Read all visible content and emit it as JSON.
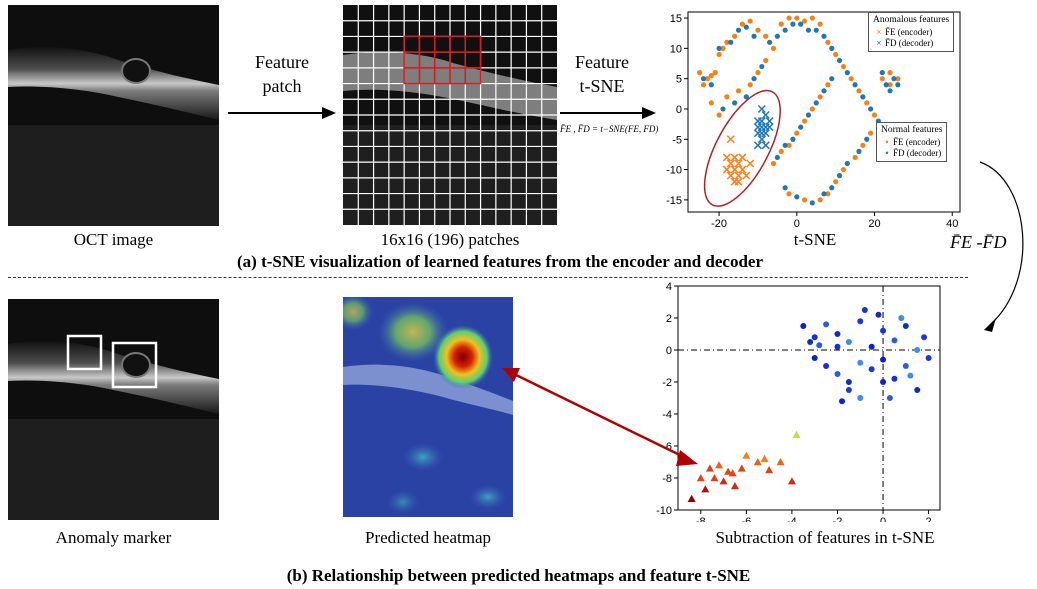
{
  "top": {
    "oct_caption": "OCT image",
    "arrow1_label_line1": "Feature",
    "arrow1_label_line2": "patch",
    "patches_caption": "16x16 (196) patches",
    "arrow2_label_line1": "Feature",
    "arrow2_label_line2": "t-SNE",
    "formula": "F̄E , F̄D = t−SNE(FE, FD)",
    "tsne_caption": "t-SNE",
    "section_title": "(a) t-SNE visualization of learned features from the encoder and decoder",
    "side_label": "F̄E -F̄D"
  },
  "bottom": {
    "marker_caption": "Anomaly marker",
    "heatmap_caption": "Predicted  heatmap",
    "sub_caption": "Subtraction of features in t-SNE",
    "section_title": "(b) Relationship between predicted heatmaps and feature t-SNE"
  },
  "legend_anomalous": {
    "title": "Anomalous  features",
    "encoder": "F̄E (encoder)",
    "decoder": "F̄D (decoder)"
  },
  "legend_normal": {
    "title": "Normal features",
    "encoder": "F̄E (encoder)",
    "decoder": "F̄D (decoder)"
  },
  "colors": {
    "encoder": "#ff7f0e",
    "decoder": "#1f77b4",
    "ellipse": "#b22222",
    "arrow": "#b00000"
  },
  "chart_data": [
    {
      "type": "scatter",
      "title": "",
      "xlabel": "",
      "ylabel": "",
      "xlim": [
        -28,
        42
      ],
      "ylim": [
        -17,
        16
      ],
      "xticks": [
        -20,
        0,
        20,
        40
      ],
      "yticks": [
        -15,
        -10,
        -5,
        0,
        5,
        10,
        15
      ],
      "grid": false,
      "series": [
        {
          "name": "Normal encoder",
          "marker": "dot",
          "points": [
            [
              -25,
              6
            ],
            [
              -24,
              4
            ],
            [
              -23,
              5
            ],
            [
              -22,
              5.5
            ],
            [
              -21,
              6
            ],
            [
              -20,
              9
            ],
            [
              -19,
              10
            ],
            [
              -18,
              11
            ],
            [
              -16,
              12
            ],
            [
              -14,
              14
            ],
            [
              -12,
              14.5
            ],
            [
              -10,
              13
            ],
            [
              -8,
              12
            ],
            [
              -6,
              10
            ],
            [
              -4,
              14
            ],
            [
              -2,
              15
            ],
            [
              0,
              15
            ],
            [
              2,
              14.5
            ],
            [
              4,
              15
            ],
            [
              6,
              14
            ],
            [
              8,
              11
            ],
            [
              10,
              9
            ],
            [
              12,
              7
            ],
            [
              14,
              5
            ],
            [
              16,
              3
            ],
            [
              18,
              1
            ],
            [
              20,
              -1
            ],
            [
              19,
              -4
            ],
            [
              17,
              -6
            ],
            [
              15,
              -8
            ],
            [
              12,
              -10
            ],
            [
              10,
              -12
            ],
            [
              8,
              -14
            ],
            [
              6,
              -15
            ],
            [
              2,
              -15
            ],
            [
              -2,
              -14
            ],
            [
              -6,
              -9
            ],
            [
              -4,
              -7
            ],
            [
              -2,
              -6
            ],
            [
              0,
              -4
            ],
            [
              2,
              -2
            ],
            [
              4,
              0
            ],
            [
              6,
              2
            ],
            [
              8,
              4
            ],
            [
              -20,
              -1
            ],
            [
              -22,
              1
            ],
            [
              -18,
              2
            ],
            [
              -15,
              3
            ],
            [
              -12,
              4
            ],
            [
              -10,
              6
            ],
            [
              -8,
              8
            ],
            [
              22,
              5
            ],
            [
              24,
              4
            ],
            [
              26,
              5
            ],
            [
              24,
              6
            ]
          ]
        },
        {
          "name": "Normal decoder",
          "marker": "dot",
          "points": [
            [
              -24,
              5
            ],
            [
              -22,
              4
            ],
            [
              -20,
              10
            ],
            [
              -17,
              11
            ],
            [
              -15,
              13
            ],
            [
              -13,
              13.5
            ],
            [
              -11,
              12
            ],
            [
              -7,
              11
            ],
            [
              -5,
              12
            ],
            [
              -3,
              13
            ],
            [
              -1,
              14
            ],
            [
              1,
              14
            ],
            [
              3,
              13
            ],
            [
              5,
              13
            ],
            [
              7,
              12
            ],
            [
              9,
              10
            ],
            [
              11,
              8
            ],
            [
              13,
              6
            ],
            [
              15,
              4
            ],
            [
              17,
              2
            ],
            [
              19,
              0
            ],
            [
              21,
              -2
            ],
            [
              18,
              -5
            ],
            [
              16,
              -7
            ],
            [
              13,
              -9
            ],
            [
              11,
              -11
            ],
            [
              9,
              -13
            ],
            [
              7,
              -14
            ],
            [
              4,
              -15.5
            ],
            [
              0,
              -14.5
            ],
            [
              -3,
              -13
            ],
            [
              -5,
              -8
            ],
            [
              -3,
              -6
            ],
            [
              -1,
              -5
            ],
            [
              1,
              -3
            ],
            [
              3,
              -1
            ],
            [
              5,
              1
            ],
            [
              7,
              3
            ],
            [
              9,
              5
            ],
            [
              -19,
              0
            ],
            [
              -16,
              1
            ],
            [
              -13,
              2
            ],
            [
              -11,
              5
            ],
            [
              -9,
              7
            ],
            [
              23,
              4
            ],
            [
              25,
              5
            ],
            [
              22,
              6
            ],
            [
              26,
              4
            ],
            [
              24,
              3
            ]
          ]
        },
        {
          "name": "Anomalous encoder",
          "marker": "x",
          "points": [
            [
              -18,
              -8
            ],
            [
              -17,
              -9
            ],
            [
              -16,
              -10
            ],
            [
              -15,
              -11
            ],
            [
              -17,
              -11
            ],
            [
              -16,
              -12
            ],
            [
              -15,
              -9
            ],
            [
              -14,
              -10
            ],
            [
              -18,
              -10
            ],
            [
              -13,
              -11
            ],
            [
              -16,
              -8
            ],
            [
              -17,
              -5
            ],
            [
              -12,
              -9
            ],
            [
              -15,
              -12
            ],
            [
              -14,
              -8
            ]
          ]
        },
        {
          "name": "Anomalous decoder",
          "marker": "x",
          "points": [
            [
              -10,
              -2
            ],
            [
              -9,
              -3
            ],
            [
              -8,
              -1
            ],
            [
              -9,
              -5
            ],
            [
              -10,
              -4
            ],
            [
              -8,
              -4
            ],
            [
              -7,
              -3
            ],
            [
              -9,
              0
            ],
            [
              -10,
              -6
            ],
            [
              -8,
              -6
            ],
            [
              -7,
              -2
            ],
            [
              -9,
              -2
            ],
            [
              -8,
              -3
            ],
            [
              -10,
              -3
            ],
            [
              -9,
              -4
            ]
          ]
        }
      ]
    },
    {
      "type": "scatter",
      "title": "",
      "xlabel": "Subtraction of features in t-SNE",
      "ylabel": "",
      "xlim": [
        -9,
        2.5
      ],
      "ylim": [
        -10,
        4
      ],
      "xticks": [
        -8,
        -6,
        -4,
        -2,
        0,
        2
      ],
      "yticks": [
        -10,
        -8,
        -6,
        -4,
        -2,
        0,
        2,
        4
      ],
      "grid": false,
      "reference_lines": {
        "x": 0,
        "y": 0
      },
      "series": [
        {
          "name": "Normal features",
          "marker": "dot",
          "points": [
            [
              -3.5,
              1.5
            ],
            [
              -3,
              0.8
            ],
            [
              -2.5,
              1.6
            ],
            [
              -2,
              1
            ],
            [
              -1.5,
              0.5
            ],
            [
              -1,
              1.8
            ],
            [
              -0.5,
              0.2
            ],
            [
              0,
              1.2
            ],
            [
              0.5,
              0.6
            ],
            [
              1,
              1.5
            ],
            [
              1.5,
              0
            ],
            [
              2,
              -0.5
            ],
            [
              -3,
              -0.5
            ],
            [
              -2.5,
              -1
            ],
            [
              -2,
              -1.5
            ],
            [
              -1.5,
              -2
            ],
            [
              -1,
              -0.8
            ],
            [
              -0.5,
              -1.2
            ],
            [
              0,
              -0.6
            ],
            [
              0.5,
              -1.8
            ],
            [
              1,
              -1
            ],
            [
              1.5,
              -2.5
            ],
            [
              -1,
              -3
            ],
            [
              -1.5,
              -2.5
            ],
            [
              0,
              -2
            ],
            [
              -2,
              0.2
            ],
            [
              -2.8,
              0.3
            ],
            [
              -0.2,
              2.2
            ],
            [
              0.8,
              2
            ],
            [
              1.8,
              0.8
            ],
            [
              -1.8,
              -3.2
            ],
            [
              -0.8,
              2.5
            ],
            [
              0.3,
              -3
            ],
            [
              -3.2,
              0.5
            ],
            [
              1.2,
              -1.6
            ]
          ]
        },
        {
          "name": "Anomalous features",
          "marker": "triangle",
          "points": [
            [
              -8.4,
              -9.3
            ],
            [
              -7.8,
              -8.7
            ],
            [
              -7.6,
              -7.4
            ],
            [
              -7.2,
              -7.2
            ],
            [
              -7,
              -8.2
            ],
            [
              -6.8,
              -7.6
            ],
            [
              -6.5,
              -8.5
            ],
            [
              -6.2,
              -7.4
            ],
            [
              -6,
              -6.6
            ],
            [
              -5.5,
              -7
            ],
            [
              -5,
              -7.5
            ],
            [
              -4.5,
              -7
            ],
            [
              -4,
              -8.2
            ],
            [
              -3.8,
              -5.3
            ],
            [
              -7.4,
              -8
            ],
            [
              -6.6,
              -7.7
            ],
            [
              -5.2,
              -6.8
            ],
            [
              -8,
              -8
            ]
          ]
        }
      ]
    }
  ]
}
